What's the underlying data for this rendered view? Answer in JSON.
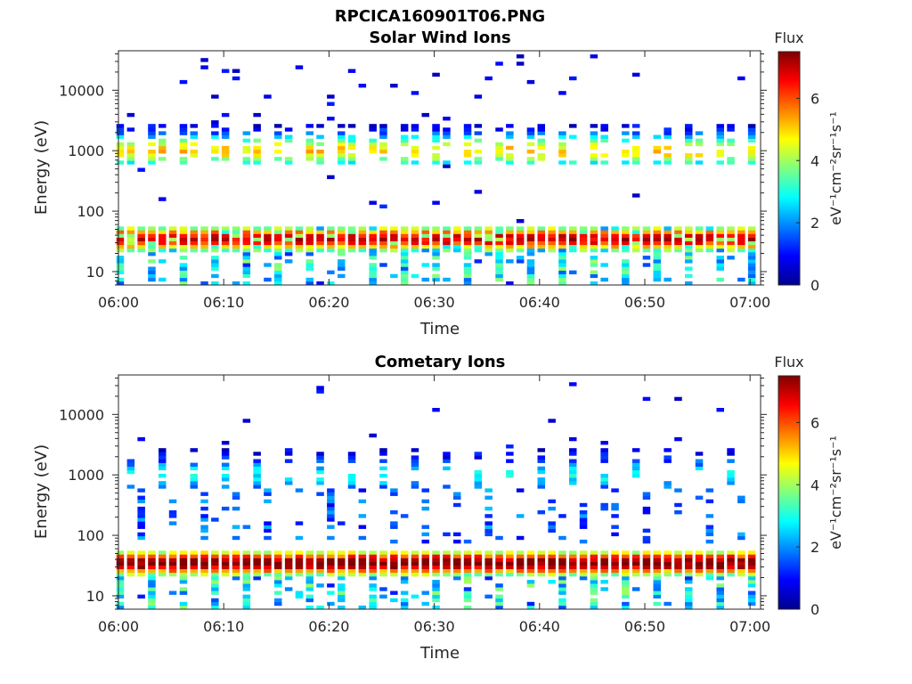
{
  "figure": {
    "title": "RPCICA160901T06.PNG"
  },
  "colorbar": {
    "title": "Flux",
    "unit_label": "eV⁻¹cm⁻²sr⁻¹s⁻¹",
    "range": [
      0,
      7.5
    ],
    "ticks": [
      "0",
      "2",
      "4",
      "6"
    ],
    "colormap": "jet"
  },
  "chart_data": [
    {
      "type": "heatmap",
      "title": "Solar Wind Ions",
      "xlabel": "Time",
      "ylabel": "Energy (eV)",
      "x_ticks": [
        "06:00",
        "06:10",
        "06:20",
        "06:30",
        "06:40",
        "06:50",
        "07:00"
      ],
      "xlim": [
        "06:00",
        "07:01"
      ],
      "y_scale": "log",
      "y_ticks": [
        "10",
        "100",
        "1000",
        "10000"
      ],
      "ylim": [
        6,
        45000
      ],
      "value_label": "Flux",
      "scan_times": [
        "06:00",
        "06:01",
        "06:02",
        "06:03",
        "06:04",
        "06:05",
        "06:06",
        "06:07",
        "06:08",
        "06:09",
        "06:10",
        "06:11",
        "06:12",
        "06:13",
        "06:14",
        "06:15",
        "06:16",
        "06:17",
        "06:18",
        "06:19",
        "06:20",
        "06:21",
        "06:22",
        "06:23",
        "06:24",
        "06:25",
        "06:26",
        "06:27",
        "06:28",
        "06:29",
        "06:30",
        "06:31",
        "06:32",
        "06:33",
        "06:34",
        "06:35",
        "06:36",
        "06:37",
        "06:38",
        "06:39",
        "06:40",
        "06:41",
        "06:42",
        "06:43",
        "06:44",
        "06:45",
        "06:46",
        "06:47",
        "06:48",
        "06:49",
        "06:50",
        "06:51",
        "06:52",
        "06:53",
        "06:54",
        "06:55",
        "06:56",
        "06:57",
        "06:58",
        "06:59",
        "07:00"
      ],
      "bands": [
        {
          "energy_range_eV": [
            20,
            55
          ],
          "peak_energy_eV": 35,
          "peak_flux": 6.5,
          "description": "continuous low-energy band"
        },
        {
          "energy_range_eV": [
            600,
            2800
          ],
          "peak_energy_eV": 1000,
          "peak_flux": 4.8,
          "description": "intermittent solar wind beam"
        },
        {
          "energy_range_eV": [
            6,
            20
          ],
          "peak_flux": 3.5,
          "description": "sporadic low-energy streaks"
        },
        {
          "energy_range_eV": [
            3000,
            40000
          ],
          "peak_flux": 0.8,
          "description": "sparse high-energy counts"
        }
      ]
    },
    {
      "type": "heatmap",
      "title": "Cometary Ions",
      "xlabel": "Time",
      "ylabel": "Energy (eV)",
      "x_ticks": [
        "06:00",
        "06:10",
        "06:20",
        "06:30",
        "06:40",
        "06:50",
        "07:00"
      ],
      "xlim": [
        "06:00",
        "07:01"
      ],
      "y_scale": "log",
      "y_ticks": [
        "10",
        "100",
        "1000",
        "10000"
      ],
      "ylim": [
        6,
        45000
      ],
      "value_label": "Flux",
      "scan_times": [
        "06:00",
        "06:01",
        "06:02",
        "06:03",
        "06:04",
        "06:05",
        "06:06",
        "06:07",
        "06:08",
        "06:09",
        "06:10",
        "06:11",
        "06:12",
        "06:13",
        "06:14",
        "06:15",
        "06:16",
        "06:17",
        "06:18",
        "06:19",
        "06:20",
        "06:21",
        "06:22",
        "06:23",
        "06:24",
        "06:25",
        "06:26",
        "06:27",
        "06:28",
        "06:29",
        "06:30",
        "06:31",
        "06:32",
        "06:33",
        "06:34",
        "06:35",
        "06:36",
        "06:37",
        "06:38",
        "06:39",
        "06:40",
        "06:41",
        "06:42",
        "06:43",
        "06:44",
        "06:45",
        "06:46",
        "06:47",
        "06:48",
        "06:49",
        "06:50",
        "06:51",
        "06:52",
        "06:53",
        "06:54",
        "06:55",
        "06:56",
        "06:57",
        "06:58",
        "06:59",
        "07:00"
      ],
      "bands": [
        {
          "energy_range_eV": [
            20,
            60
          ],
          "peak_energy_eV": 35,
          "peak_flux": 7.0,
          "description": "continuous cometary ion band"
        },
        {
          "energy_range_eV": [
            800,
            2800
          ],
          "peak_flux": 2.5,
          "description": "intermittent beam"
        },
        {
          "energy_range_eV": [
            70,
            600
          ],
          "peak_flux": 2.0,
          "description": "intermittent mid-energy streaks"
        },
        {
          "energy_range_eV": [
            6,
            20
          ],
          "peak_flux": 3.5,
          "description": "sporadic low-energy streaks"
        }
      ]
    }
  ]
}
